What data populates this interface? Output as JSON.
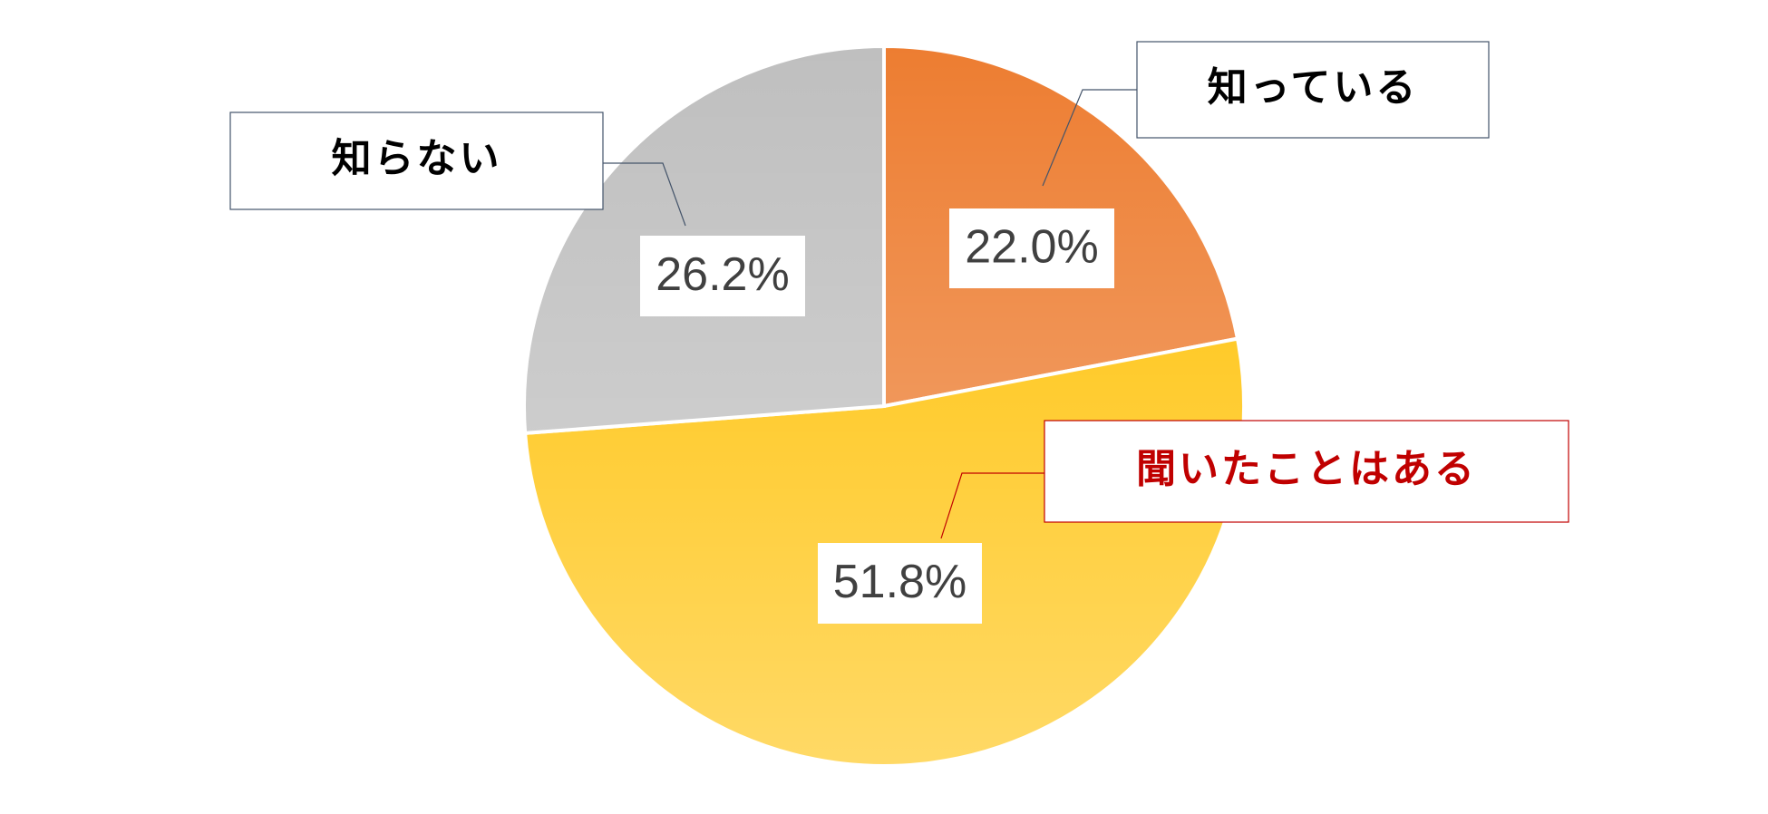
{
  "chart_data": {
    "type": "pie",
    "categories": [
      "知っている",
      "聞いたことはある",
      "知らない"
    ],
    "values": [
      22.0,
      51.8,
      26.2
    ],
    "value_labels": [
      "22.0%",
      "51.8%",
      "26.2%"
    ],
    "colors": [
      "#ed7d31",
      "#ffc000",
      "#bfbfbf"
    ],
    "label_colors": [
      "#000000",
      "#c00000",
      "#000000"
    ]
  }
}
